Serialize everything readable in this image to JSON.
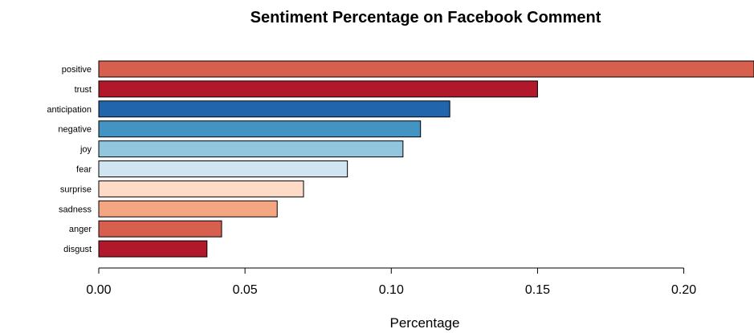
{
  "chart_data": {
    "type": "bar",
    "orientation": "horizontal",
    "title": "Sentiment Percentage on Facebook Comment",
    "xlabel": "Percentage",
    "ylabel": "",
    "categories": [
      "positive",
      "trust",
      "anticipation",
      "negative",
      "joy",
      "fear",
      "surprise",
      "sadness",
      "anger",
      "disgust"
    ],
    "values": [
      0.224,
      0.15,
      0.12,
      0.11,
      0.104,
      0.085,
      0.07,
      0.061,
      0.042,
      0.037
    ],
    "colors": [
      "#D6604D",
      "#B2182B",
      "#2166AC",
      "#4393C3",
      "#92C5DE",
      "#D1E5F0",
      "#FDDBC7",
      "#F4A582",
      "#D6604D",
      "#B2182B"
    ],
    "xlim": [
      0,
      0.224
    ],
    "xticks": [
      0.0,
      0.05,
      0.1,
      0.15,
      0.2
    ],
    "xtick_labels": [
      "0.00",
      "0.05",
      "0.10",
      "0.15",
      "0.20"
    ],
    "grid": false,
    "legend": "none"
  }
}
